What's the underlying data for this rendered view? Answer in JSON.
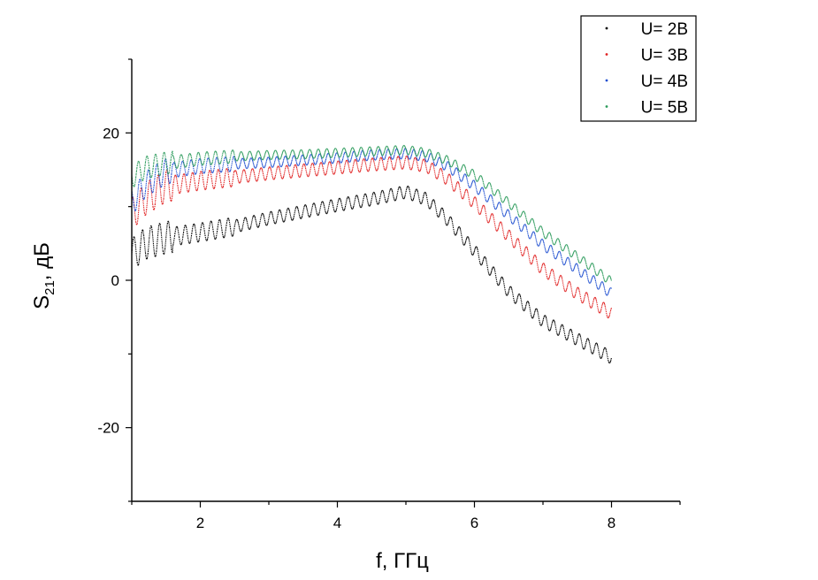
{
  "chart_data": {
    "type": "line",
    "xlabel": "f, ГГц",
    "ylabel_main": "S",
    "ylabel_sub": "21",
    "ylabel_rest": ", дБ",
    "xlim": [
      1,
      9
    ],
    "ylim": [
      -30,
      30
    ],
    "x_ticks": [
      2,
      4,
      6,
      8
    ],
    "y_ticks": [
      -20,
      0,
      20
    ],
    "grid": false,
    "legend_position": "top-right",
    "ripple_db": [
      1.0,
      1.0,
      0.8,
      0.7
    ],
    "ripple_cycles_per_ghz": 8.0,
    "series": [
      {
        "name": "U= 2В",
        "color": "#000000",
        "x": [
          1.0,
          1.2,
          1.5,
          2.0,
          2.5,
          3.0,
          3.5,
          4.0,
          4.5,
          5.0,
          5.3,
          5.6,
          6.0,
          6.5,
          7.0,
          7.5,
          8.0
        ],
        "y": [
          3.5,
          5.0,
          5.8,
          6.5,
          7.3,
          8.4,
          9.3,
          10.2,
          11.0,
          12.0,
          11.0,
          8.3,
          4.0,
          -1.5,
          -5.5,
          -8.0,
          -10.5
        ]
      },
      {
        "name": "U= 3В",
        "color": "#e02020",
        "x": [
          1.0,
          1.2,
          1.5,
          2.0,
          2.5,
          3.0,
          3.5,
          4.0,
          4.5,
          5.0,
          5.3,
          5.6,
          6.0,
          6.5,
          7.0,
          7.5,
          8.0
        ],
        "y": [
          9.0,
          11.0,
          12.8,
          13.5,
          14.0,
          14.5,
          14.9,
          15.3,
          15.7,
          16.0,
          15.5,
          13.8,
          10.5,
          6.0,
          1.5,
          -1.8,
          -4.5
        ]
      },
      {
        "name": "U= 4В",
        "color": "#1f4fd0",
        "x": [
          1.0,
          1.2,
          1.5,
          2.0,
          2.5,
          3.0,
          3.5,
          4.0,
          4.5,
          5.0,
          5.3,
          5.6,
          6.0,
          6.5,
          7.0,
          7.5,
          8.0
        ],
        "y": [
          10.5,
          13.0,
          14.8,
          15.5,
          15.8,
          16.0,
          16.3,
          16.6,
          17.0,
          17.2,
          16.8,
          15.5,
          12.8,
          8.8,
          4.8,
          1.5,
          -1.8
        ]
      },
      {
        "name": "U= 5В",
        "color": "#2a9a5a",
        "x": [
          1.0,
          1.2,
          1.5,
          2.0,
          2.5,
          3.0,
          3.5,
          4.0,
          4.5,
          5.0,
          5.3,
          5.6,
          6.0,
          6.5,
          7.0,
          7.5,
          8.0
        ],
        "y": [
          14.0,
          15.3,
          15.9,
          16.5,
          16.8,
          17.0,
          17.1,
          17.3,
          17.5,
          17.7,
          17.3,
          16.3,
          14.3,
          10.5,
          6.5,
          3.2,
          -0.2
        ]
      }
    ]
  }
}
